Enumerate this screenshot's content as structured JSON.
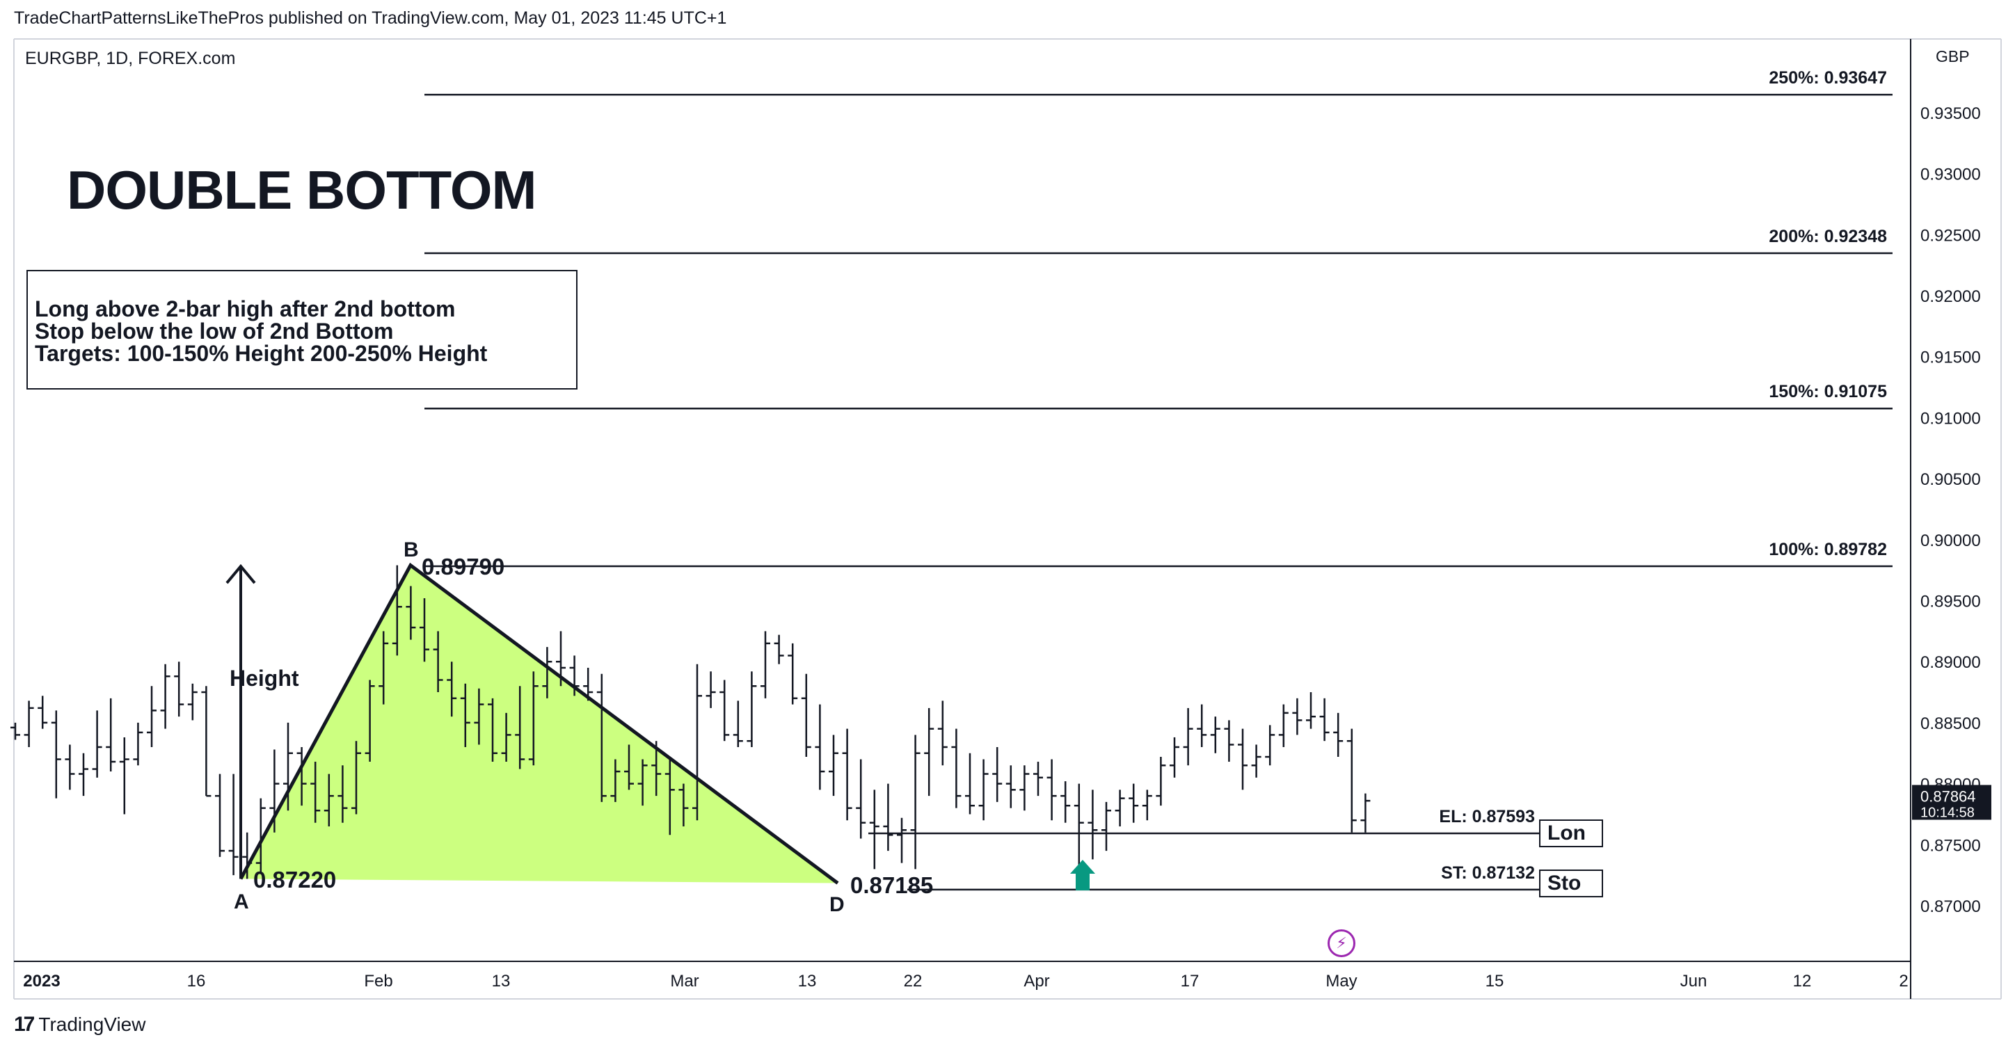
{
  "header": "TradeChartPatternsLikeThePros published on TradingView.com, May 01, 2023 11:45 UTC+1",
  "symbol": "EURGBP, 1D, FOREX.com",
  "currency": "GBP",
  "pattern_title": "DOUBLE BOTTOM",
  "notes": [
    "Long above 2-bar high after 2nd bottom",
    "Stop below the low of 2nd Bottom",
    "Targets: 100-150% Height 200-250% Height"
  ],
  "brand": "TradingView",
  "last_price": {
    "price": "0.87864",
    "countdown": "10:14:58"
  },
  "entry_button": "Lon",
  "stop_button": "Sto",
  "colors": {
    "fill": "#ccff80",
    "bull_arrow": "#089981",
    "price_tag": "#131722",
    "flash": "#9c27b0"
  },
  "chart_data": {
    "type": "bar",
    "y_axis": {
      "ticks": [
        "0.93500",
        "0.93000",
        "0.92500",
        "0.92000",
        "0.91500",
        "0.91000",
        "0.90500",
        "0.90000",
        "0.89500",
        "0.89000",
        "0.88500",
        "0.88000",
        "0.87500",
        "0.87000"
      ],
      "range": [
        0.8657,
        0.9388
      ]
    },
    "x_axis": {
      "ticks": [
        "2023",
        "16",
        "Feb",
        "13",
        "Mar",
        "13",
        "22",
        "Apr",
        "17",
        "May",
        "15",
        "Jun",
        "12",
        "2"
      ]
    },
    "levels": [
      {
        "label": "250%: 0.93647",
        "value": 0.93647
      },
      {
        "label": "200%: 0.92348",
        "value": 0.92348
      },
      {
        "label": "150%: 0.91075",
        "value": 0.91075
      },
      {
        "label": "100%: 0.89782",
        "value": 0.89782
      },
      {
        "label": "EL: 0.87593",
        "value": 0.87593
      },
      {
        "label": "ST: 0.87132",
        "value": 0.87132
      }
    ],
    "pattern_points": [
      {
        "name": "A",
        "label": "0.87220",
        "value": 0.8722
      },
      {
        "name": "B",
        "label": "0.89790",
        "value": 0.8979
      },
      {
        "name": "D",
        "label": "0.87185",
        "value": 0.87185
      }
    ],
    "height_label": "Height",
    "ohlc": [
      [
        0.8846,
        0.885,
        0.8836,
        0.884
      ],
      [
        0.884,
        0.8868,
        0.883,
        0.8862
      ],
      [
        0.8862,
        0.8872,
        0.8845,
        0.885
      ],
      [
        0.885,
        0.886,
        0.8788,
        0.882
      ],
      [
        0.882,
        0.8832,
        0.8795,
        0.8808
      ],
      [
        0.8808,
        0.8825,
        0.879,
        0.8812
      ],
      [
        0.8812,
        0.886,
        0.8805,
        0.883
      ],
      [
        0.883,
        0.887,
        0.881,
        0.8818
      ],
      [
        0.8818,
        0.8838,
        0.8775,
        0.882
      ],
      [
        0.882,
        0.885,
        0.8815,
        0.8842
      ],
      [
        0.8842,
        0.888,
        0.883,
        0.886
      ],
      [
        0.886,
        0.8898,
        0.8845,
        0.8888
      ],
      [
        0.8888,
        0.89,
        0.8855,
        0.8865
      ],
      [
        0.8865,
        0.8882,
        0.8852,
        0.8875
      ],
      [
        0.8875,
        0.888,
        0.879,
        0.879
      ],
      [
        0.879,
        0.8808,
        0.874,
        0.8745
      ],
      [
        0.8745,
        0.8808,
        0.8725,
        0.874
      ],
      [
        0.874,
        0.876,
        0.8722,
        0.8735
      ],
      [
        0.8735,
        0.8788,
        0.8726,
        0.878
      ],
      [
        0.878,
        0.8828,
        0.876,
        0.88
      ],
      [
        0.88,
        0.885,
        0.8778,
        0.8825
      ],
      [
        0.8825,
        0.883,
        0.8782,
        0.88
      ],
      [
        0.88,
        0.8818,
        0.8768,
        0.8778
      ],
      [
        0.8778,
        0.8808,
        0.8765,
        0.879
      ],
      [
        0.879,
        0.8815,
        0.8768,
        0.878
      ],
      [
        0.878,
        0.8835,
        0.8775,
        0.8825
      ],
      [
        0.8825,
        0.8885,
        0.8818,
        0.888
      ],
      [
        0.888,
        0.8925,
        0.8865,
        0.8915
      ],
      [
        0.8915,
        0.8979,
        0.8905,
        0.8945
      ],
      [
        0.8945,
        0.8962,
        0.8918,
        0.8928
      ],
      [
        0.8928,
        0.8952,
        0.89,
        0.891
      ],
      [
        0.891,
        0.8925,
        0.8875,
        0.8885
      ],
      [
        0.8885,
        0.89,
        0.8855,
        0.887
      ],
      [
        0.887,
        0.8882,
        0.883,
        0.885
      ],
      [
        0.885,
        0.8878,
        0.8832,
        0.8865
      ],
      [
        0.8865,
        0.887,
        0.8818,
        0.8825
      ],
      [
        0.8825,
        0.8858,
        0.8818,
        0.884
      ],
      [
        0.884,
        0.888,
        0.8812,
        0.882
      ],
      [
        0.882,
        0.8892,
        0.8815,
        0.888
      ],
      [
        0.888,
        0.8912,
        0.887,
        0.89
      ],
      [
        0.89,
        0.8925,
        0.888,
        0.8895
      ],
      [
        0.8895,
        0.8905,
        0.8872,
        0.888
      ],
      [
        0.888,
        0.8895,
        0.8868,
        0.8875
      ],
      [
        0.8875,
        0.889,
        0.8785,
        0.879
      ],
      [
        0.879,
        0.882,
        0.8785,
        0.881
      ],
      [
        0.881,
        0.8832,
        0.8795,
        0.88
      ],
      [
        0.88,
        0.882,
        0.8782,
        0.8815
      ],
      [
        0.8815,
        0.8835,
        0.879,
        0.8808
      ],
      [
        0.8808,
        0.8822,
        0.8758,
        0.8795
      ],
      [
        0.8795,
        0.88,
        0.8765,
        0.878
      ],
      [
        0.878,
        0.8898,
        0.877,
        0.8872
      ],
      [
        0.8872,
        0.8892,
        0.8862,
        0.8875
      ],
      [
        0.8875,
        0.8885,
        0.8835,
        0.884
      ],
      [
        0.884,
        0.8868,
        0.883,
        0.8835
      ],
      [
        0.8835,
        0.8892,
        0.883,
        0.888
      ],
      [
        0.888,
        0.8925,
        0.887,
        0.8915
      ],
      [
        0.8915,
        0.8922,
        0.8898,
        0.8905
      ],
      [
        0.8905,
        0.8915,
        0.8865,
        0.887
      ],
      [
        0.887,
        0.889,
        0.8822,
        0.883
      ],
      [
        0.883,
        0.8865,
        0.8795,
        0.881
      ],
      [
        0.881,
        0.884,
        0.879,
        0.8825
      ],
      [
        0.8825,
        0.8845,
        0.877,
        0.878
      ],
      [
        0.878,
        0.882,
        0.8755,
        0.8768
      ],
      [
        0.8768,
        0.8795,
        0.873,
        0.8765
      ],
      [
        0.8765,
        0.88,
        0.8745,
        0.8758
      ],
      [
        0.8758,
        0.8772,
        0.8735,
        0.8762
      ],
      [
        0.8762,
        0.884,
        0.873,
        0.8825
      ],
      [
        0.8825,
        0.8862,
        0.879,
        0.8845
      ],
      [
        0.8845,
        0.8868,
        0.8815,
        0.883
      ],
      [
        0.883,
        0.8845,
        0.878,
        0.879
      ],
      [
        0.879,
        0.8825,
        0.8775,
        0.8782
      ],
      [
        0.8782,
        0.882,
        0.877,
        0.8808
      ],
      [
        0.8808,
        0.883,
        0.8785,
        0.88
      ],
      [
        0.88,
        0.8815,
        0.878,
        0.8795
      ],
      [
        0.8795,
        0.8815,
        0.8778,
        0.8808
      ],
      [
        0.8808,
        0.8818,
        0.879,
        0.8805
      ],
      [
        0.8805,
        0.882,
        0.877,
        0.879
      ],
      [
        0.879,
        0.8802,
        0.8768,
        0.8782
      ],
      [
        0.8782,
        0.88,
        0.8725,
        0.8768
      ],
      [
        0.8768,
        0.8795,
        0.8738,
        0.8762
      ],
      [
        0.8762,
        0.8785,
        0.8745,
        0.8778
      ],
      [
        0.8778,
        0.8795,
        0.8765,
        0.8788
      ],
      [
        0.8788,
        0.88,
        0.8768,
        0.8782
      ],
      [
        0.8782,
        0.8795,
        0.877,
        0.879
      ],
      [
        0.879,
        0.8822,
        0.8782,
        0.8815
      ],
      [
        0.8815,
        0.8838,
        0.8805,
        0.883
      ],
      [
        0.883,
        0.8862,
        0.8815,
        0.8845
      ],
      [
        0.8845,
        0.8865,
        0.883,
        0.884
      ],
      [
        0.884,
        0.8855,
        0.8825,
        0.8845
      ],
      [
        0.8845,
        0.8852,
        0.8818,
        0.8832
      ],
      [
        0.8832,
        0.8845,
        0.8795,
        0.8815
      ],
      [
        0.8815,
        0.8832,
        0.8805,
        0.8822
      ],
      [
        0.8822,
        0.8848,
        0.8815,
        0.884
      ],
      [
        0.884,
        0.8865,
        0.883,
        0.8858
      ],
      [
        0.8858,
        0.887,
        0.884,
        0.8852
      ],
      [
        0.8852,
        0.8875,
        0.8845,
        0.8855
      ],
      [
        0.8855,
        0.887,
        0.8835,
        0.8842
      ],
      [
        0.8842,
        0.8858,
        0.8822,
        0.8835
      ],
      [
        0.8835,
        0.8845,
        0.876,
        0.877
      ],
      [
        0.877,
        0.8792,
        0.876,
        0.8786
      ]
    ]
  }
}
